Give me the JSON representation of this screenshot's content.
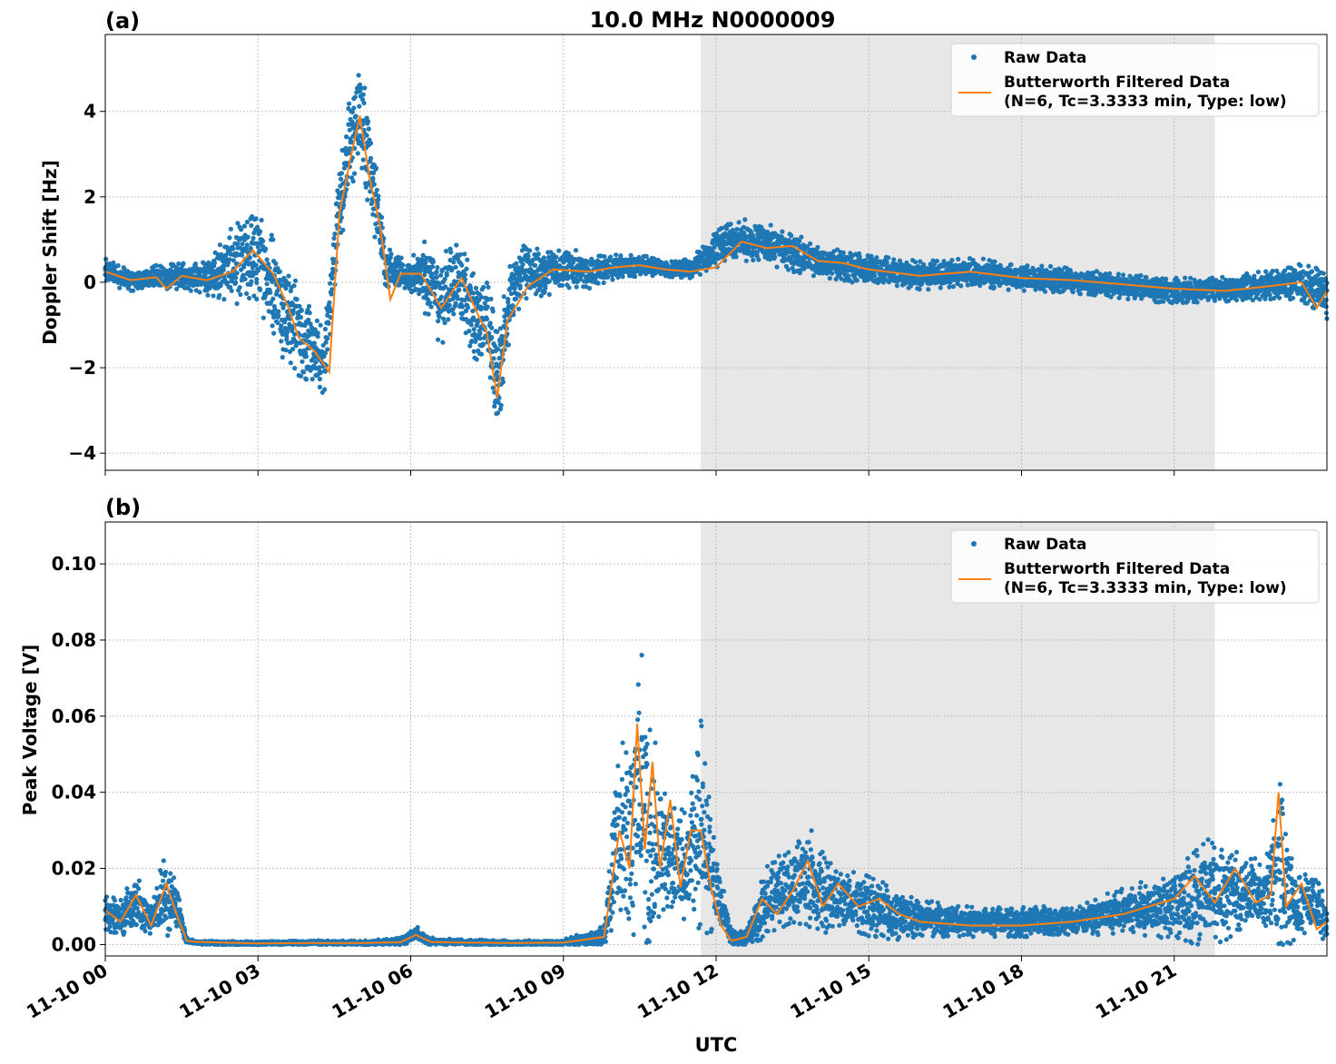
{
  "figure": {
    "title": "10.0 MHz N0000009",
    "xlabel": "UTC"
  },
  "chart_data": [
    {
      "type": "line",
      "panel_label": "(a)",
      "ylabel": "Doppler Shift [Hz]",
      "xlim": [
        0,
        24
      ],
      "ylim": [
        -4.4,
        5.8
      ],
      "yticks": [
        -4,
        -2,
        0,
        2,
        4
      ],
      "ytick_labels": [
        "−4",
        "−2",
        "0",
        "2",
        "4"
      ],
      "grid": true,
      "shaded_interval_hours": [
        11.7,
        21.8
      ],
      "legend_position": "top-right",
      "legend": [
        "Raw Data",
        "Butterworth Filtered Data",
        "(N=6, Tc=3.3333 min, Type: low)"
      ],
      "series": [
        {
          "name": "Raw Data",
          "color": "#1f77b4",
          "x": [
            0,
            0.5,
            1,
            1.5,
            2,
            2.5,
            3,
            3.5,
            4,
            4.3,
            4.6,
            4.8,
            5,
            5.2,
            5.5,
            5.8,
            6,
            6.3,
            6.6,
            6.9,
            7.2,
            7.5,
            7.7,
            7.9,
            8.2,
            8.5,
            9,
            9.5,
            10,
            10.5,
            11,
            11.5,
            12,
            12.5,
            13,
            13.5,
            14,
            15,
            16,
            17,
            18,
            19,
            20,
            21,
            22,
            23,
            23.5,
            24
          ],
          "y": [
            0.25,
            0.05,
            0.1,
            0.15,
            0.1,
            0.4,
            0.6,
            -0.5,
            -1.5,
            -1.9,
            1.8,
            3.2,
            4.0,
            2.8,
            0.4,
            0.2,
            0.15,
            0.1,
            -0.4,
            0.2,
            -0.8,
            -0.9,
            -2.4,
            -0.6,
            0.3,
            0.2,
            0.35,
            0.25,
            0.35,
            0.4,
            0.3,
            0.3,
            0.8,
            1.0,
            0.9,
            0.7,
            0.5,
            0.3,
            0.15,
            0.25,
            0.1,
            0.05,
            -0.1,
            -0.2,
            -0.15,
            -0.05,
            0.0,
            -0.3
          ],
          "spread": [
            0.3,
            0.25,
            0.3,
            0.3,
            0.4,
            0.9,
            1.2,
            1.3,
            1.0,
            0.8,
            1.0,
            1.2,
            1.3,
            1.2,
            0.5,
            0.4,
            0.4,
            0.9,
            1.1,
            0.9,
            1.1,
            1.0,
            1.4,
            1.0,
            0.7,
            0.6,
            0.5,
            0.4,
            0.3,
            0.25,
            0.2,
            0.25,
            0.45,
            0.5,
            0.5,
            0.45,
            0.4,
            0.35,
            0.35,
            0.35,
            0.3,
            0.3,
            0.3,
            0.3,
            0.3,
            0.35,
            0.45,
            0.55
          ]
        },
        {
          "name": "Butterworth Filtered Data",
          "color": "#ff7f0e",
          "x": [
            0,
            0.5,
            1,
            1.2,
            1.5,
            2,
            2.5,
            2.9,
            3.3,
            3.6,
            3.8,
            4.1,
            4.4,
            4.6,
            4.8,
            5.0,
            5.2,
            5.4,
            5.6,
            5.8,
            6.2,
            6.6,
            7.0,
            7.3,
            7.5,
            7.7,
            7.9,
            8.3,
            8.8,
            9.5,
            10,
            10.5,
            11,
            11.5,
            12,
            12.5,
            13,
            13.5,
            14,
            14.5,
            15,
            16,
            17,
            18,
            19,
            20,
            21,
            22,
            22.8,
            23.5,
            23.8,
            24
          ],
          "y": [
            0.25,
            0.05,
            0.12,
            -0.15,
            0.15,
            0.05,
            0.25,
            0.75,
            0.2,
            -0.6,
            -1.3,
            -1.6,
            -2.1,
            1.6,
            2.8,
            3.9,
            2.4,
            1.3,
            -0.4,
            0.2,
            0.2,
            -0.6,
            0.1,
            -0.7,
            -1.2,
            -2.7,
            -0.9,
            -0.1,
            0.3,
            0.25,
            0.35,
            0.4,
            0.3,
            0.25,
            0.35,
            0.95,
            0.8,
            0.85,
            0.5,
            0.45,
            0.3,
            0.15,
            0.25,
            0.1,
            0.05,
            -0.05,
            -0.15,
            -0.2,
            -0.1,
            0.0,
            -0.6,
            -0.2
          ]
        }
      ]
    },
    {
      "type": "line",
      "panel_label": "(b)",
      "ylabel": "Peak Voltage [V]",
      "xlim": [
        0,
        24
      ],
      "ylim": [
        -0.003,
        0.111
      ],
      "yticks": [
        0.0,
        0.02,
        0.04,
        0.06,
        0.08,
        0.1
      ],
      "ytick_labels": [
        "0.00",
        "0.02",
        "0.04",
        "0.06",
        "0.08",
        "0.10"
      ],
      "xticks": [
        0,
        3,
        6,
        9,
        12,
        15,
        18,
        21
      ],
      "xtick_labels": [
        "11-10 00",
        "11-10 03",
        "11-10 06",
        "11-10 09",
        "11-10 12",
        "11-10 15",
        "11-10 18",
        "11-10 21"
      ],
      "grid": true,
      "shaded_interval_hours": [
        11.7,
        21.8
      ],
      "legend_position": "top-right",
      "legend": [
        "Raw Data",
        "Butterworth Filtered Data",
        "(N=6, Tc=3.3333 min, Type: low)"
      ],
      "series": [
        {
          "name": "Raw Data",
          "color": "#1f77b4",
          "x": [
            0,
            0.3,
            0.6,
            0.9,
            1.2,
            1.4,
            1.6,
            1.8,
            3,
            4,
            5,
            5.8,
            6.1,
            6.4,
            7,
            8,
            9,
            9.8,
            10.1,
            10.3,
            10.5,
            10.7,
            10.9,
            11.1,
            11.4,
            11.7,
            12.0,
            12.3,
            12.6,
            13,
            13.4,
            13.8,
            14.2,
            14.6,
            15,
            15.5,
            16,
            17,
            18,
            19,
            20,
            20.7,
            21.2,
            21.6,
            22,
            22.4,
            22.8,
            23.1,
            23.4,
            23.7,
            24
          ],
          "y": [
            0.008,
            0.007,
            0.012,
            0.006,
            0.014,
            0.01,
            0.001,
            0.0005,
            0.0003,
            0.0005,
            0.0004,
            0.0008,
            0.003,
            0.0008,
            0.0006,
            0.0004,
            0.0005,
            0.002,
            0.03,
            0.022,
            0.045,
            0.025,
            0.028,
            0.022,
            0.02,
            0.03,
            0.015,
            0.002,
            0.0015,
            0.012,
            0.015,
            0.018,
            0.012,
            0.012,
            0.01,
            0.008,
            0.007,
            0.006,
            0.006,
            0.006,
            0.009,
            0.01,
            0.012,
            0.014,
            0.013,
            0.014,
            0.012,
            0.022,
            0.01,
            0.012,
            0.006
          ],
          "spread": [
            0.005,
            0.005,
            0.007,
            0.004,
            0.012,
            0.006,
            0.0008,
            0.0005,
            0.0005,
            0.0006,
            0.0006,
            0.001,
            0.002,
            0.001,
            0.0008,
            0.0006,
            0.0008,
            0.003,
            0.025,
            0.03,
            0.035,
            0.035,
            0.02,
            0.015,
            0.015,
            0.03,
            0.01,
            0.002,
            0.002,
            0.01,
            0.01,
            0.014,
            0.01,
            0.008,
            0.008,
            0.007,
            0.005,
            0.004,
            0.004,
            0.004,
            0.006,
            0.008,
            0.012,
            0.015,
            0.012,
            0.01,
            0.01,
            0.03,
            0.008,
            0.009,
            0.005
          ]
        },
        {
          "name": "Butterworth Filtered Data",
          "color": "#ff7f0e",
          "x": [
            0,
            0.3,
            0.6,
            0.9,
            1.2,
            1.4,
            1.6,
            1.8,
            3,
            4,
            5,
            5.8,
            6.1,
            6.4,
            7,
            8,
            9,
            9.8,
            10.1,
            10.3,
            10.45,
            10.6,
            10.75,
            10.9,
            11.1,
            11.3,
            11.5,
            11.7,
            11.9,
            12.1,
            12.3,
            12.6,
            12.9,
            13.2,
            13.5,
            13.8,
            14.1,
            14.4,
            14.8,
            15.2,
            15.6,
            16,
            17,
            18,
            19,
            20,
            20.5,
            21,
            21.4,
            21.8,
            22.2,
            22.6,
            22.9,
            23.05,
            23.2,
            23.5,
            23.8,
            24
          ],
          "y": [
            0.009,
            0.006,
            0.013,
            0.005,
            0.016,
            0.008,
            0.001,
            0.0007,
            0.0003,
            0.0004,
            0.0004,
            0.0006,
            0.0025,
            0.0007,
            0.0005,
            0.0004,
            0.0005,
            0.002,
            0.03,
            0.02,
            0.058,
            0.025,
            0.048,
            0.02,
            0.038,
            0.015,
            0.03,
            0.03,
            0.015,
            0.005,
            0.001,
            0.002,
            0.012,
            0.008,
            0.014,
            0.022,
            0.01,
            0.016,
            0.01,
            0.012,
            0.008,
            0.006,
            0.005,
            0.005,
            0.006,
            0.008,
            0.01,
            0.012,
            0.018,
            0.011,
            0.02,
            0.011,
            0.013,
            0.04,
            0.01,
            0.016,
            0.004,
            0.006
          ]
        }
      ]
    }
  ]
}
